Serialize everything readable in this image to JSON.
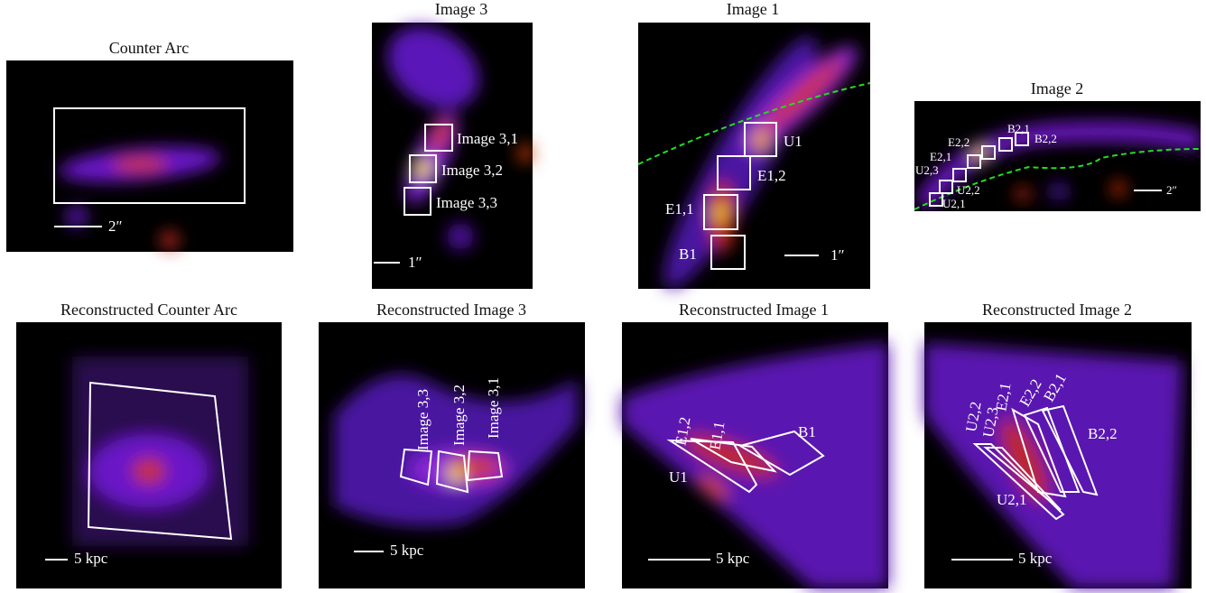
{
  "panels": [
    {
      "title": "Counter Arc",
      "scale": "2″"
    },
    {
      "title": "Image 3",
      "labels": [
        "Image 3,1",
        "Image 3,2",
        "Image 3,3"
      ],
      "scale": "1″"
    },
    {
      "title": "Image 1",
      "labels": [
        "U1",
        "E1,2",
        "E1,1",
        "B1"
      ],
      "scale": "1″"
    },
    {
      "title": "Image 2",
      "labels": [
        "B2,1",
        "B2,2",
        "E2,2",
        "E2,1",
        "U2,3",
        "U2,2",
        "U2,1"
      ],
      "scale": "2″"
    },
    {
      "title": "Reconstructed Counter Arc",
      "scale": "5 kpc"
    },
    {
      "title": "Reconstructed Image 3",
      "labels": [
        "Image 3,3",
        "Image 3,2",
        "Image 3,1"
      ],
      "scale": "5 kpc"
    },
    {
      "title": "Reconstructed Image 1",
      "labels": [
        "E1,2",
        "E1,1",
        "B1",
        "U1"
      ],
      "scale": "5 kpc"
    },
    {
      "title": "Reconstructed Image 2",
      "labels": [
        "U2,2",
        "U2,3",
        "E2,1",
        "E2,2",
        "B2,1",
        "B2,2",
        "U2,1"
      ],
      "scale": "5 kpc"
    }
  ]
}
